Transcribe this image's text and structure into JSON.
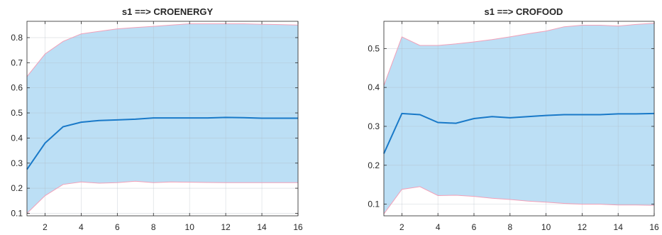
{
  "chart_data": [
    {
      "type": "area",
      "title": "s1 ==> CROENERGY",
      "xlabel": "",
      "ylabel": "",
      "xlim": [
        1,
        16
      ],
      "ylim": [
        0.09,
        0.865
      ],
      "xticks": [
        2,
        4,
        6,
        8,
        10,
        12,
        14,
        16
      ],
      "yticks": [
        0.1,
        0.2,
        0.3,
        0.4,
        0.5,
        0.6,
        0.7,
        0.8
      ],
      "grid": true,
      "x": [
        1,
        2,
        3,
        4,
        5,
        6,
        7,
        8,
        9,
        10,
        11,
        12,
        13,
        14,
        15,
        16
      ],
      "series": [
        {
          "role": "upper",
          "values": [
            0.645,
            0.735,
            0.785,
            0.815,
            0.825,
            0.835,
            0.84,
            0.845,
            0.85,
            0.855,
            0.855,
            0.855,
            0.855,
            0.853,
            0.852,
            0.85
          ]
        },
        {
          "role": "median",
          "values": [
            0.275,
            0.38,
            0.445,
            0.463,
            0.47,
            0.472,
            0.475,
            0.48,
            0.48,
            0.48,
            0.48,
            0.482,
            0.481,
            0.479,
            0.479,
            0.479
          ]
        },
        {
          "role": "lower",
          "values": [
            0.1,
            0.17,
            0.215,
            0.225,
            0.22,
            0.222,
            0.228,
            0.222,
            0.225,
            0.224,
            0.223,
            0.222,
            0.222,
            0.222,
            0.222,
            0.222
          ]
        }
      ],
      "colors": {
        "band": "#bcdff5",
        "median": "#1979c8",
        "bounds": "#f2a0b8"
      }
    },
    {
      "type": "area",
      "title": "s1 ==> CROFOOD",
      "xlabel": "",
      "ylabel": "",
      "xlim": [
        1,
        16
      ],
      "ylim": [
        0.07,
        0.57
      ],
      "xticks": [
        2,
        4,
        6,
        8,
        10,
        12,
        14,
        16
      ],
      "yticks": [
        0.1,
        0.2,
        0.3,
        0.4,
        0.5
      ],
      "grid": true,
      "x": [
        1,
        2,
        3,
        4,
        5,
        6,
        7,
        8,
        9,
        10,
        11,
        12,
        13,
        14,
        15,
        16
      ],
      "series": [
        {
          "role": "upper",
          "values": [
            0.405,
            0.53,
            0.508,
            0.508,
            0.512,
            0.517,
            0.523,
            0.53,
            0.538,
            0.545,
            0.556,
            0.56,
            0.56,
            0.558,
            0.562,
            0.565
          ]
        },
        {
          "role": "median",
          "values": [
            0.23,
            0.333,
            0.33,
            0.31,
            0.308,
            0.32,
            0.325,
            0.322,
            0.325,
            0.328,
            0.33,
            0.33,
            0.33,
            0.332,
            0.332,
            0.333
          ]
        },
        {
          "role": "lower",
          "values": [
            0.075,
            0.138,
            0.145,
            0.122,
            0.123,
            0.12,
            0.115,
            0.112,
            0.108,
            0.105,
            0.102,
            0.1,
            0.1,
            0.098,
            0.098,
            0.097
          ]
        }
      ],
      "colors": {
        "band": "#bcdff5",
        "median": "#1979c8",
        "bounds": "#f2a0b8"
      }
    }
  ]
}
